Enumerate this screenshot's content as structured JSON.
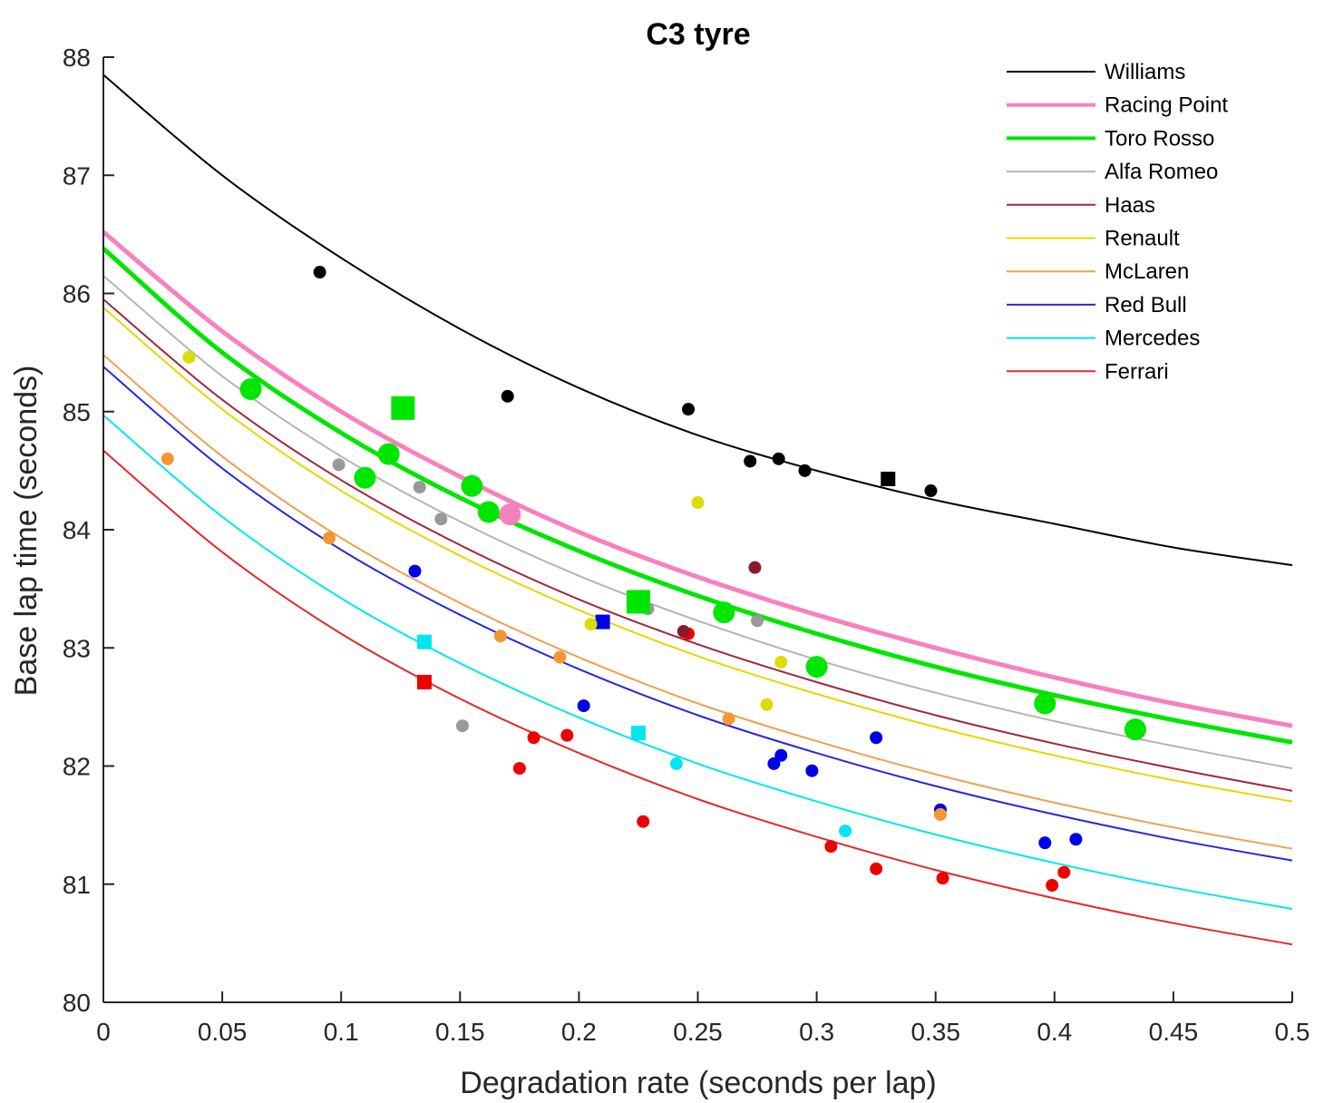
{
  "chart_data": {
    "type": "scatter",
    "title": "C3 tyre",
    "xlabel": "Degradation rate (seconds per lap)",
    "ylabel": "Base lap time (seconds)",
    "xlim": [
      0,
      0.5
    ],
    "ylim": [
      80,
      88
    ],
    "xticks": [
      0,
      0.05,
      0.1,
      0.15,
      0.2,
      0.25,
      0.3,
      0.35,
      0.4,
      0.45,
      0.5
    ],
    "xtick_labels": [
      "0",
      "0.05",
      "0.1",
      "0.15",
      "0.2",
      "0.25",
      "0.3",
      "0.35",
      "0.4",
      "0.45",
      "0.5"
    ],
    "yticks": [
      80,
      81,
      82,
      83,
      84,
      85,
      86,
      87,
      88
    ],
    "ytick_labels": [
      "80",
      "81",
      "82",
      "83",
      "84",
      "85",
      "86",
      "87",
      "88"
    ],
    "legend_position": "top-right",
    "grid": false,
    "series": [
      {
        "name": "Williams",
        "color": "#000000",
        "point_color": "#000000",
        "line_weight": "normal",
        "curve": [
          [
            0,
            87.85
          ],
          [
            0.05,
            87.0
          ],
          [
            0.1,
            86.3
          ],
          [
            0.15,
            85.7
          ],
          [
            0.2,
            85.2
          ],
          [
            0.25,
            84.8
          ],
          [
            0.3,
            84.5
          ],
          [
            0.35,
            84.25
          ],
          [
            0.4,
            84.05
          ],
          [
            0.45,
            83.85
          ],
          [
            0.5,
            83.7
          ]
        ],
        "points": [
          [
            0.091,
            86.18
          ],
          [
            0.17,
            85.13
          ],
          [
            0.246,
            85.02
          ],
          [
            0.272,
            84.58
          ],
          [
            0.284,
            84.6
          ],
          [
            0.295,
            84.5
          ],
          [
            0.348,
            84.33
          ]
        ],
        "squares": [
          [
            0.33,
            84.43
          ]
        ],
        "big_points": [],
        "big_squares": []
      },
      {
        "name": "Racing Point",
        "color": "#f781bf",
        "point_color": "#f781bf",
        "line_weight": "bold",
        "curve": [
          [
            0,
            86.52
          ],
          [
            0.05,
            85.68
          ],
          [
            0.1,
            85.0
          ],
          [
            0.15,
            84.45
          ],
          [
            0.2,
            83.98
          ],
          [
            0.25,
            83.6
          ],
          [
            0.3,
            83.28
          ],
          [
            0.35,
            83.0
          ],
          [
            0.4,
            82.75
          ],
          [
            0.45,
            82.53
          ],
          [
            0.5,
            82.34
          ]
        ],
        "points": [],
        "squares": [],
        "big_points": [
          [
            0.171,
            84.13
          ]
        ],
        "big_squares": []
      },
      {
        "name": "Toro Rosso",
        "color": "#00e600",
        "point_color": "#00e600",
        "line_weight": "bold",
        "curve": [
          [
            0,
            86.38
          ],
          [
            0.05,
            85.5
          ],
          [
            0.1,
            84.82
          ],
          [
            0.15,
            84.27
          ],
          [
            0.2,
            83.82
          ],
          [
            0.25,
            83.44
          ],
          [
            0.3,
            83.12
          ],
          [
            0.35,
            82.84
          ],
          [
            0.4,
            82.6
          ],
          [
            0.45,
            82.39
          ],
          [
            0.5,
            82.2
          ]
        ],
        "points": [],
        "squares": [],
        "big_points": [
          [
            0.062,
            85.19
          ],
          [
            0.12,
            84.64
          ],
          [
            0.11,
            84.44
          ],
          [
            0.155,
            84.37
          ],
          [
            0.162,
            84.15
          ],
          [
            0.261,
            83.3
          ],
          [
            0.3,
            82.84
          ],
          [
            0.396,
            82.53
          ],
          [
            0.434,
            82.31
          ]
        ],
        "big_squares": [
          [
            0.126,
            85.03
          ],
          [
            0.225,
            83.39
          ]
        ]
      },
      {
        "name": "Alfa Romeo",
        "color": "#b4b4b4",
        "point_color": "#999999",
        "line_weight": "normal",
        "curve": [
          [
            0,
            86.15
          ],
          [
            0.05,
            85.3
          ],
          [
            0.1,
            84.62
          ],
          [
            0.15,
            84.07
          ],
          [
            0.2,
            83.61
          ],
          [
            0.25,
            83.23
          ],
          [
            0.3,
            82.9
          ],
          [
            0.35,
            82.62
          ],
          [
            0.4,
            82.38
          ],
          [
            0.45,
            82.17
          ],
          [
            0.5,
            81.98
          ]
        ],
        "points": [
          [
            0.099,
            84.55
          ],
          [
            0.133,
            84.36
          ],
          [
            0.142,
            84.09
          ],
          [
            0.151,
            82.34
          ],
          [
            0.229,
            83.33
          ],
          [
            0.275,
            83.23
          ]
        ],
        "squares": [],
        "big_points": [],
        "big_squares": []
      },
      {
        "name": "Haas",
        "color": "#a0283c",
        "point_color": "#8b1a2b",
        "line_weight": "normal",
        "curve": [
          [
            0,
            85.95
          ],
          [
            0.05,
            85.1
          ],
          [
            0.1,
            84.42
          ],
          [
            0.15,
            83.87
          ],
          [
            0.2,
            83.41
          ],
          [
            0.25,
            83.03
          ],
          [
            0.3,
            82.71
          ],
          [
            0.35,
            82.43
          ],
          [
            0.4,
            82.19
          ],
          [
            0.45,
            81.98
          ],
          [
            0.5,
            81.79
          ]
        ],
        "points": [
          [
            0.274,
            83.68
          ],
          [
            0.244,
            83.14
          ]
        ],
        "squares": [],
        "big_points": [],
        "big_squares": []
      },
      {
        "name": "Renault",
        "color": "#e6d700",
        "point_color": "#dcdc00",
        "line_weight": "normal",
        "curve": [
          [
            0,
            85.88
          ],
          [
            0.05,
            85.02
          ],
          [
            0.1,
            84.33
          ],
          [
            0.15,
            83.78
          ],
          [
            0.2,
            83.32
          ],
          [
            0.25,
            82.93
          ],
          [
            0.3,
            82.61
          ],
          [
            0.35,
            82.33
          ],
          [
            0.4,
            82.09
          ],
          [
            0.45,
            81.88
          ],
          [
            0.5,
            81.7
          ]
        ],
        "points": [
          [
            0.036,
            85.46
          ],
          [
            0.205,
            83.2
          ],
          [
            0.25,
            84.23
          ],
          [
            0.285,
            82.88
          ],
          [
            0.279,
            82.52
          ]
        ],
        "squares": [],
        "big_points": [],
        "big_squares": []
      },
      {
        "name": "McLaren",
        "color": "#f0a050",
        "point_color": "#f59632",
        "line_weight": "normal",
        "curve": [
          [
            0,
            85.48
          ],
          [
            0.05,
            84.62
          ],
          [
            0.1,
            83.93
          ],
          [
            0.15,
            83.38
          ],
          [
            0.2,
            82.92
          ],
          [
            0.25,
            82.53
          ],
          [
            0.3,
            82.21
          ],
          [
            0.35,
            81.93
          ],
          [
            0.4,
            81.69
          ],
          [
            0.45,
            81.48
          ],
          [
            0.5,
            81.3
          ]
        ],
        "points": [
          [
            0.027,
            84.6
          ],
          [
            0.095,
            83.93
          ],
          [
            0.167,
            83.1
          ],
          [
            0.192,
            82.92
          ],
          [
            0.263,
            82.4
          ],
          [
            0.352,
            81.59
          ]
        ],
        "squares": [],
        "big_points": [],
        "big_squares": []
      },
      {
        "name": "Red Bull",
        "color": "#2828dc",
        "point_color": "#0000e6",
        "line_weight": "normal",
        "curve": [
          [
            0,
            85.38
          ],
          [
            0.05,
            84.52
          ],
          [
            0.1,
            83.83
          ],
          [
            0.15,
            83.28
          ],
          [
            0.2,
            82.82
          ],
          [
            0.25,
            82.43
          ],
          [
            0.3,
            82.11
          ],
          [
            0.35,
            81.83
          ],
          [
            0.4,
            81.59
          ],
          [
            0.45,
            81.38
          ],
          [
            0.5,
            81.2
          ]
        ],
        "points": [
          [
            0.131,
            83.65
          ],
          [
            0.202,
            82.51
          ],
          [
            0.282,
            82.02
          ],
          [
            0.285,
            82.09
          ],
          [
            0.298,
            81.96
          ],
          [
            0.325,
            82.24
          ],
          [
            0.352,
            81.63
          ],
          [
            0.396,
            81.35
          ],
          [
            0.409,
            81.38
          ]
        ],
        "squares": [
          [
            0.21,
            83.22
          ]
        ],
        "big_points": [],
        "big_squares": []
      },
      {
        "name": "Mercedes",
        "color": "#00e6f0",
        "point_color": "#00e6f0",
        "line_weight": "normal",
        "curve": [
          [
            0,
            84.97
          ],
          [
            0.05,
            84.11
          ],
          [
            0.1,
            83.42
          ],
          [
            0.15,
            82.87
          ],
          [
            0.2,
            82.41
          ],
          [
            0.25,
            82.02
          ],
          [
            0.3,
            81.7
          ],
          [
            0.35,
            81.42
          ],
          [
            0.4,
            81.18
          ],
          [
            0.45,
            80.97
          ],
          [
            0.5,
            80.79
          ]
        ],
        "points": [
          [
            0.241,
            82.02
          ],
          [
            0.312,
            81.45
          ]
        ],
        "squares": [
          [
            0.135,
            83.05
          ],
          [
            0.225,
            82.28
          ]
        ],
        "big_points": [],
        "big_squares": []
      },
      {
        "name": "Ferrari",
        "color": "#e62828",
        "point_color": "#ee0000",
        "line_weight": "normal",
        "curve": [
          [
            0,
            84.67
          ],
          [
            0.05,
            83.81
          ],
          [
            0.1,
            83.12
          ],
          [
            0.15,
            82.57
          ],
          [
            0.2,
            82.11
          ],
          [
            0.25,
            81.72
          ],
          [
            0.3,
            81.4
          ],
          [
            0.35,
            81.12
          ],
          [
            0.4,
            80.88
          ],
          [
            0.45,
            80.67
          ],
          [
            0.5,
            80.49
          ]
        ],
        "points": [
          [
            0.175,
            81.98
          ],
          [
            0.181,
            82.24
          ],
          [
            0.195,
            82.26
          ],
          [
            0.227,
            81.53
          ],
          [
            0.246,
            83.12
          ],
          [
            0.306,
            81.32
          ],
          [
            0.325,
            81.13
          ],
          [
            0.353,
            81.05
          ],
          [
            0.399,
            80.99
          ],
          [
            0.404,
            81.1
          ]
        ],
        "squares": [
          [
            0.135,
            82.71
          ]
        ],
        "big_points": [],
        "big_squares": []
      }
    ]
  }
}
